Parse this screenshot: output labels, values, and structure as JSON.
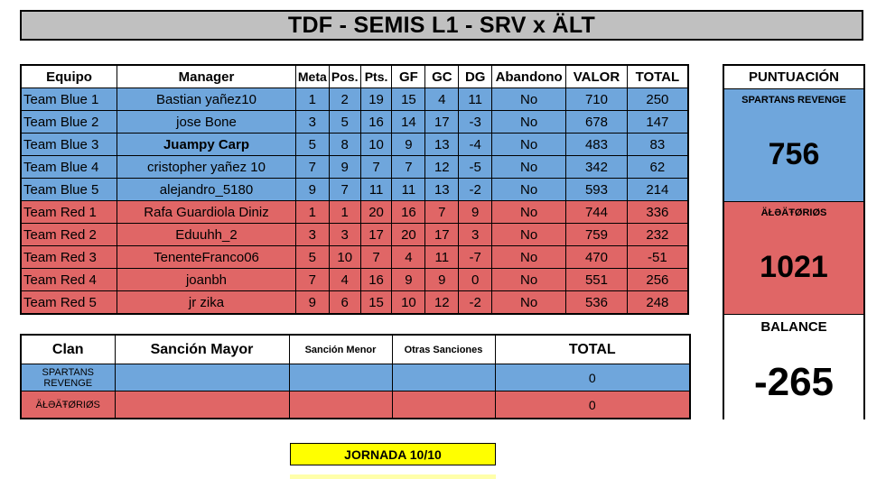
{
  "title": "TDF - SEMIS L1 - SRV x ÄLT",
  "main_table": {
    "headers": [
      "Equipo",
      "Manager",
      "Meta",
      "Pos.",
      "Pts.",
      "GF",
      "GC",
      "DG",
      "Abandono",
      "VALOR",
      "TOTAL"
    ],
    "rows": [
      {
        "team": "Team Blue 1",
        "manager": "Bastian yañez10",
        "meta": "1",
        "pos": "2",
        "pts": "19",
        "gf": "15",
        "gc": "4",
        "dg": "11",
        "abandono": "No",
        "valor": "710",
        "total": "250"
      },
      {
        "team": "Team Blue 2",
        "manager": "jose Bone",
        "meta": "3",
        "pos": "5",
        "pts": "16",
        "gf": "14",
        "gc": "17",
        "dg": "-3",
        "abandono": "No",
        "valor": "678",
        "total": "147"
      },
      {
        "team": "Team Blue 3",
        "manager": "Juampy Carp",
        "meta": "5",
        "pos": "8",
        "pts": "10",
        "gf": "9",
        "gc": "13",
        "dg": "-4",
        "abandono": "No",
        "valor": "483",
        "total": "83"
      },
      {
        "team": "Team Blue 4",
        "manager": "cristopher yañez 10",
        "meta": "7",
        "pos": "9",
        "pts": "7",
        "gf": "7",
        "gc": "12",
        "dg": "-5",
        "abandono": "No",
        "valor": "342",
        "total": "62"
      },
      {
        "team": "Team Blue 5",
        "manager": "alejandro_5180",
        "meta": "9",
        "pos": "7",
        "pts": "11",
        "gf": "11",
        "gc": "13",
        "dg": "-2",
        "abandono": "No",
        "valor": "593",
        "total": "214"
      },
      {
        "team": "Team Red 1",
        "manager": "Rafa Guardiola Diniz",
        "meta": "1",
        "pos": "1",
        "pts": "20",
        "gf": "16",
        "gc": "7",
        "dg": "9",
        "abandono": "No",
        "valor": "744",
        "total": "336"
      },
      {
        "team": "Team Red 2",
        "manager": "Eduuhh_2",
        "meta": "3",
        "pos": "3",
        "pts": "17",
        "gf": "20",
        "gc": "17",
        "dg": "3",
        "abandono": "No",
        "valor": "759",
        "total": "232"
      },
      {
        "team": "Team Red 3",
        "manager": "TenenteFranco06",
        "meta": "5",
        "pos": "10",
        "pts": "7",
        "gf": "4",
        "gc": "11",
        "dg": "-7",
        "abandono": "No",
        "valor": "470",
        "total": "-51"
      },
      {
        "team": "Team Red 4",
        "manager": "joanbh",
        "meta": "7",
        "pos": "4",
        "pts": "16",
        "gf": "9",
        "gc": "9",
        "dg": "0",
        "abandono": "No",
        "valor": "551",
        "total": "256"
      },
      {
        "team": "Team Red 5",
        "manager": "jr zika",
        "meta": "9",
        "pos": "6",
        "pts": "15",
        "gf": "10",
        "gc": "12",
        "dg": "-2",
        "abandono": "No",
        "valor": "536",
        "total": "248"
      }
    ],
    "row_colors": {
      "blue": "#6fa6dc",
      "red": "#e06666"
    }
  },
  "clan_table": {
    "headers": [
      "Clan",
      "Sanción Mayor",
      "Sanción Menor",
      "Otras Sanciones",
      "TOTAL"
    ],
    "rows": [
      {
        "clan": "SPARTANS REVENGE",
        "mayor": "",
        "menor": "",
        "otras": "",
        "total": "0"
      },
      {
        "clan": "ÄŁƏÄŦØRIØS",
        "mayor": "",
        "menor": "",
        "otras": "",
        "total": "0"
      }
    ]
  },
  "score_panel": {
    "header": "PUNTUACIÓN",
    "blue_label": "SPARTANS REVENGE",
    "blue_value": "756",
    "red_label": "ÄŁƏÄŦØRIØS",
    "red_value": "1021",
    "balance_label": "BALANCE",
    "balance_value": "-265"
  },
  "jornada": "JORNADA 10/10"
}
